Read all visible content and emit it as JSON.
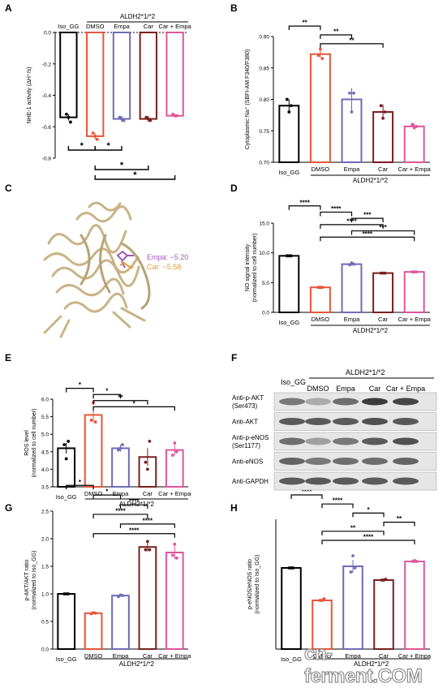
{
  "figure": {
    "watermark": "cn-ferment.COM",
    "colors": {
      "Iso_GG": "#000000",
      "DMSO": "#e8553a",
      "Empa": "#6f6cb8",
      "Car": "#7a1f1f",
      "Car + Empa": "#e0559b",
      "protein": "#cdb98f",
      "empa_ligand": "#9c5ab8",
      "car_ligand": "#e09a3a"
    }
  },
  "chart_data": [
    {
      "panel": "A",
      "type": "bar",
      "ylabel": "NHE-1 activity (ΔH⁺/s)",
      "group_label": "ALDH2*1/*2",
      "categories": [
        "Iso_GG",
        "DMSO",
        "Empa",
        "Car",
        "Car + Empa"
      ],
      "values": [
        -0.54,
        -0.66,
        -0.55,
        -0.55,
        -0.53
      ],
      "errors": [
        0.02,
        0.02,
        0.02,
        0.02,
        0.01
      ],
      "points": [
        [
          -0.52,
          -0.54,
          -0.57
        ],
        [
          -0.64,
          -0.66,
          -0.68
        ],
        [
          -0.54,
          -0.55,
          -0.56
        ],
        [
          -0.54,
          -0.55,
          -0.56
        ],
        [
          -0.52,
          -0.53,
          -0.53
        ]
      ],
      "ylim": [
        -0.8,
        0
      ],
      "yticks": [
        "0.0",
        "-0.2",
        "-0.4",
        "-0.6",
        "-0.8"
      ],
      "significance": [
        {
          "pair": [
            0,
            1
          ],
          "label": "*"
        },
        {
          "pair": [
            1,
            2
          ],
          "label": "*"
        },
        {
          "pair": [
            1,
            3
          ],
          "label": "*"
        },
        {
          "pair": [
            1,
            4
          ],
          "label": "*"
        }
      ]
    },
    {
      "panel": "B",
      "type": "bar",
      "ylabel": "Cytoplasmic Na⁺ (SBFI-AM F340/F380)",
      "group_label": "ALDH2*1/*2",
      "categories": [
        "Iso_GG",
        "DMSO",
        "Empa",
        "Car",
        "Car + Empa"
      ],
      "values": [
        0.79,
        0.872,
        0.8,
        0.78,
        0.757
      ],
      "errors": [
        0.01,
        0.006,
        0.018,
        0.012,
        0.005
      ],
      "points": [
        [
          0.8,
          0.78,
          0.79
        ],
        [
          0.87,
          0.88,
          0.865
        ],
        [
          0.81,
          0.78,
          0.81
        ],
        [
          0.79,
          0.77,
          0.78
        ],
        [
          0.76,
          0.755,
          0.757
        ]
      ],
      "ylim": [
        0.7,
        0.9
      ],
      "yticks": [
        "0.70",
        "0.75",
        "0.80",
        "0.85",
        "0.90"
      ],
      "significance": [
        {
          "pair": [
            0,
            1
          ],
          "label": "**"
        },
        {
          "pair": [
            1,
            2
          ],
          "label": "**"
        },
        {
          "pair": [
            1,
            3
          ],
          "label": "**"
        }
      ]
    },
    {
      "panel": "D",
      "type": "bar",
      "ylabel": "NO signal intensity (normalized to cell number)",
      "group_label": "ALDH2*1/*2",
      "categories": [
        "Iso_GG",
        "DMSO",
        "Empa",
        "Car",
        "Car + Empa"
      ],
      "values": [
        9.5,
        4.2,
        8.1,
        6.6,
        6.8
      ],
      "errors": [
        0.05,
        0.05,
        0.25,
        0.08,
        0.05
      ],
      "points": [
        [
          9.5,
          9.5,
          9.5
        ],
        [
          4.2,
          4.2,
          4.2
        ],
        [
          8.0,
          8.3,
          8.1
        ],
        [
          6.6,
          6.6,
          6.6
        ],
        [
          6.8,
          6.8,
          6.8
        ]
      ],
      "ylim": [
        0,
        15
      ],
      "yticks": [
        "0.0",
        "5.0",
        "10.0",
        "15.0"
      ],
      "significance": [
        {
          "pair": [
            0,
            1
          ],
          "label": "****"
        },
        {
          "pair": [
            1,
            2
          ],
          "label": "****"
        },
        {
          "pair": [
            2,
            3
          ],
          "label": "***"
        },
        {
          "pair": [
            1,
            3
          ],
          "label": "****"
        },
        {
          "pair": [
            2,
            4
          ],
          "label": "***"
        },
        {
          "pair": [
            1,
            4
          ],
          "label": "****"
        }
      ]
    },
    {
      "panel": "E",
      "type": "bar",
      "ylabel": "ROS level (normalized to cell number)",
      "group_label": "ALDH2*1/*2",
      "categories": [
        "Iso_GG",
        "DMSO",
        "Empa",
        "Car",
        "Car + Empa"
      ],
      "values": [
        4.6,
        5.55,
        4.6,
        4.35,
        4.55
      ],
      "errors": [
        0.15,
        0.2,
        0.1,
        0.25,
        0.15
      ],
      "points": [
        [
          4.7,
          4.3,
          4.8
        ],
        [
          5.4,
          5.9,
          5.35
        ],
        [
          4.55,
          4.6,
          4.7
        ],
        [
          4.2,
          4.0,
          4.8
        ],
        [
          4.4,
          4.75,
          4.5
        ]
      ],
      "ylim": [
        3.5,
        6.0
      ],
      "yticks": [
        "3.5",
        "4.0",
        "4.5",
        "5.0",
        "5.5",
        "6.0"
      ],
      "significance": [
        {
          "pair": [
            0,
            1
          ],
          "label": "*"
        },
        {
          "pair": [
            1,
            2
          ],
          "label": "*"
        },
        {
          "pair": [
            1,
            3
          ],
          "label": "**"
        },
        {
          "pair": [
            1,
            4
          ],
          "label": "*"
        }
      ]
    },
    {
      "panel": "G",
      "type": "bar",
      "ylabel": "p-AKT/AKT ratio (normalized to Iso_GG)",
      "group_label": "ALDH2*1/*2",
      "categories": [
        "Iso_GG",
        "DMSO",
        "Empa",
        "Car",
        "Car + Empa"
      ],
      "values": [
        1.0,
        0.65,
        0.97,
        1.85,
        1.75
      ],
      "errors": [
        0.0,
        0.02,
        0.02,
        0.08,
        0.12
      ],
      "points": [
        [
          1.0,
          1.0,
          1.0
        ],
        [
          0.64,
          0.66,
          0.65
        ],
        [
          0.95,
          0.98,
          0.97
        ],
        [
          1.8,
          1.95,
          1.8
        ],
        [
          1.7,
          1.9,
          1.65
        ]
      ],
      "ylim": [
        0,
        2.5
      ],
      "yticks": [
        "0.0",
        "0.5",
        "1.0",
        "1.5",
        "2.0",
        "2.5"
      ],
      "significance": [
        {
          "pair": [
            0,
            1
          ],
          "label": "*"
        },
        {
          "pair": [
            1,
            2
          ],
          "label": "*"
        },
        {
          "pair": [
            2,
            3
          ],
          "label": "****"
        },
        {
          "pair": [
            1,
            3
          ],
          "label": "****"
        },
        {
          "pair": [
            2,
            4
          ],
          "label": "****"
        },
        {
          "pair": [
            1,
            4
          ],
          "label": "****"
        }
      ]
    },
    {
      "panel": "H",
      "type": "bar",
      "ylabel": "p-eNOS/eNOS ratio (normalized to Iso_GG)",
      "group_label": "ALDH2*1/*2",
      "categories": [
        "Iso_GG",
        "DMSO",
        "Empa",
        "Car",
        "Car + Empa"
      ],
      "values": [
        1.0,
        0.6,
        1.02,
        0.85,
        1.08
      ],
      "errors": [
        0.0,
        0.02,
        0.08,
        0.02,
        0.02
      ],
      "points": [
        [
          1.0,
          1.0,
          1.0
        ],
        [
          0.6,
          0.6,
          0.62
        ],
        [
          0.95,
          1.15,
          1.0
        ],
        [
          0.85,
          0.85,
          0.86
        ],
        [
          1.08,
          1.09,
          1.08
        ]
      ],
      "ylim": [
        0,
        1.6
      ],
      "yticks": [],
      "significance": [
        {
          "pair": [
            0,
            1
          ],
          "label": "****"
        },
        {
          "pair": [
            1,
            2
          ],
          "label": "****"
        },
        {
          "pair": [
            2,
            3
          ],
          "label": "*"
        },
        {
          "pair": [
            3,
            4
          ],
          "label": "**"
        },
        {
          "pair": [
            1,
            3
          ],
          "label": "**"
        },
        {
          "pair": [
            1,
            4
          ],
          "label": "****"
        }
      ]
    }
  ],
  "panel_c": {
    "label": "C",
    "annotations": [
      "Empa: −5.20",
      "Car: −5.58"
    ]
  },
  "panel_f": {
    "label": "F",
    "header_iso": "Iso_GG",
    "header_group": "ALDH2*1/*2",
    "columns": [
      "DMSO",
      "Empa",
      "Car",
      "Car + Empa"
    ],
    "rows": [
      {
        "label": "Anti-p-AKT",
        "sub": "(Ser473)",
        "intensity": [
          0.55,
          0.3,
          0.6,
          0.85,
          0.8
        ]
      },
      {
        "label": "Anti-AKT",
        "sub": "",
        "intensity": [
          0.7,
          0.7,
          0.7,
          0.75,
          0.7
        ]
      },
      {
        "label": "Anti-p-eNOS",
        "sub": "(Ser1177)",
        "intensity": [
          0.6,
          0.35,
          0.55,
          0.7,
          0.75
        ]
      },
      {
        "label": "Anti-eNOS",
        "sub": "",
        "intensity": [
          0.65,
          0.55,
          0.6,
          0.6,
          0.65
        ]
      },
      {
        "label": "Anti-GAPDH",
        "sub": "",
        "intensity": [
          0.7,
          0.7,
          0.7,
          0.7,
          0.7
        ]
      }
    ]
  }
}
